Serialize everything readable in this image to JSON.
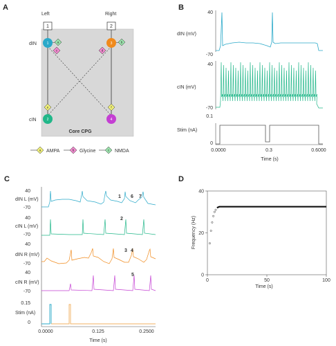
{
  "panels": {
    "A": {
      "label": "A",
      "left_label": "Left",
      "right_label": "Right",
      "left_box": "1",
      "right_box": "2",
      "row_top": "dIN",
      "row_bottom": "cIN",
      "core_label": "Core CPG",
      "node_numbers": [
        "1",
        "2",
        "3",
        "4"
      ],
      "synapse_letters": [
        "a",
        "b",
        "c",
        "d",
        "e",
        "f",
        "g",
        "h"
      ],
      "legend": [
        {
          "letter": "a",
          "name": "AMPA",
          "color": "#eeee77"
        },
        {
          "letter": "b",
          "name": "Glycine",
          "color": "#ee88cc"
        },
        {
          "letter": "c",
          "name": "NMDA",
          "color": "#99e0aa"
        }
      ],
      "colors": {
        "dIN_left": "#2aa9c9",
        "cIN_left": "#21b789",
        "dIN_right": "#f08a1c",
        "cIN_right": "#c43fd3"
      }
    },
    "B": {
      "label": "B",
      "traces": [
        {
          "name": "dIN (mV)",
          "top": "40",
          "bottom": "-70",
          "color": "#2aa9c9"
        },
        {
          "name": "cIN (mV)",
          "top": "40",
          "bottom": "-70",
          "color": "#21b789"
        },
        {
          "name": "Stim (nA)",
          "top": "0.1",
          "bottom": "0",
          "color": "#555555"
        }
      ],
      "xticks": [
        "0.0000",
        "0.3",
        "0.6000"
      ],
      "xlabel": "Time (s)"
    },
    "C": {
      "label": "C",
      "traces": [
        {
          "name": "dIN L (mV)",
          "top": "40",
          "bottom": "-70",
          "color": "#2aa9c9"
        },
        {
          "name": "cIN L (mV)",
          "top": "40",
          "bottom": "-70",
          "color": "#21b789"
        },
        {
          "name": "dIN R (mV)",
          "top": "40",
          "bottom": "-70",
          "color": "#f08a1c"
        },
        {
          "name": "cIN R (mV)",
          "top": "40",
          "bottom": "-70",
          "color": "#c43fd3"
        },
        {
          "name": "Stim (nA)",
          "top": "0.15",
          "bottom": "0",
          "color": "#555555"
        }
      ],
      "annotations": [
        "1",
        "6",
        "7",
        "2",
        "3",
        "4",
        "5"
      ],
      "xticks": [
        "0.0000",
        "0.125",
        "0.2500"
      ],
      "xlabel": "Time (s)"
    },
    "D": {
      "label": "D",
      "ylabel": "Frequency (Hz)",
      "xlabel": "Time (s)"
    }
  },
  "chart_data": [
    {
      "type": "line",
      "title": "",
      "xlabel": "Time (s)",
      "ylabel": "Frequency (Hz)",
      "xlim": [
        0,
        100
      ],
      "ylim": [
        0,
        40
      ],
      "xticks": [
        "0",
        "50",
        "100"
      ],
      "yticks": [
        "0",
        "20",
        "40"
      ],
      "grid": false,
      "series": [
        {
          "values": [
            [
              2,
              15
            ],
            [
              3,
              21
            ],
            [
              4,
              25
            ],
            [
              5,
              28
            ],
            [
              6,
              30
            ],
            [
              7,
              31
            ],
            [
              8,
              32
            ],
            [
              10,
              32.5
            ],
            [
              20,
              32.5
            ],
            [
              30,
              32.5
            ],
            [
              40,
              32.5
            ],
            [
              50,
              32.5
            ],
            [
              60,
              32.5
            ],
            [
              70,
              32.5
            ],
            [
              80,
              32.5
            ],
            [
              90,
              32.5
            ],
            [
              100,
              32.5
            ]
          ]
        }
      ]
    }
  ]
}
